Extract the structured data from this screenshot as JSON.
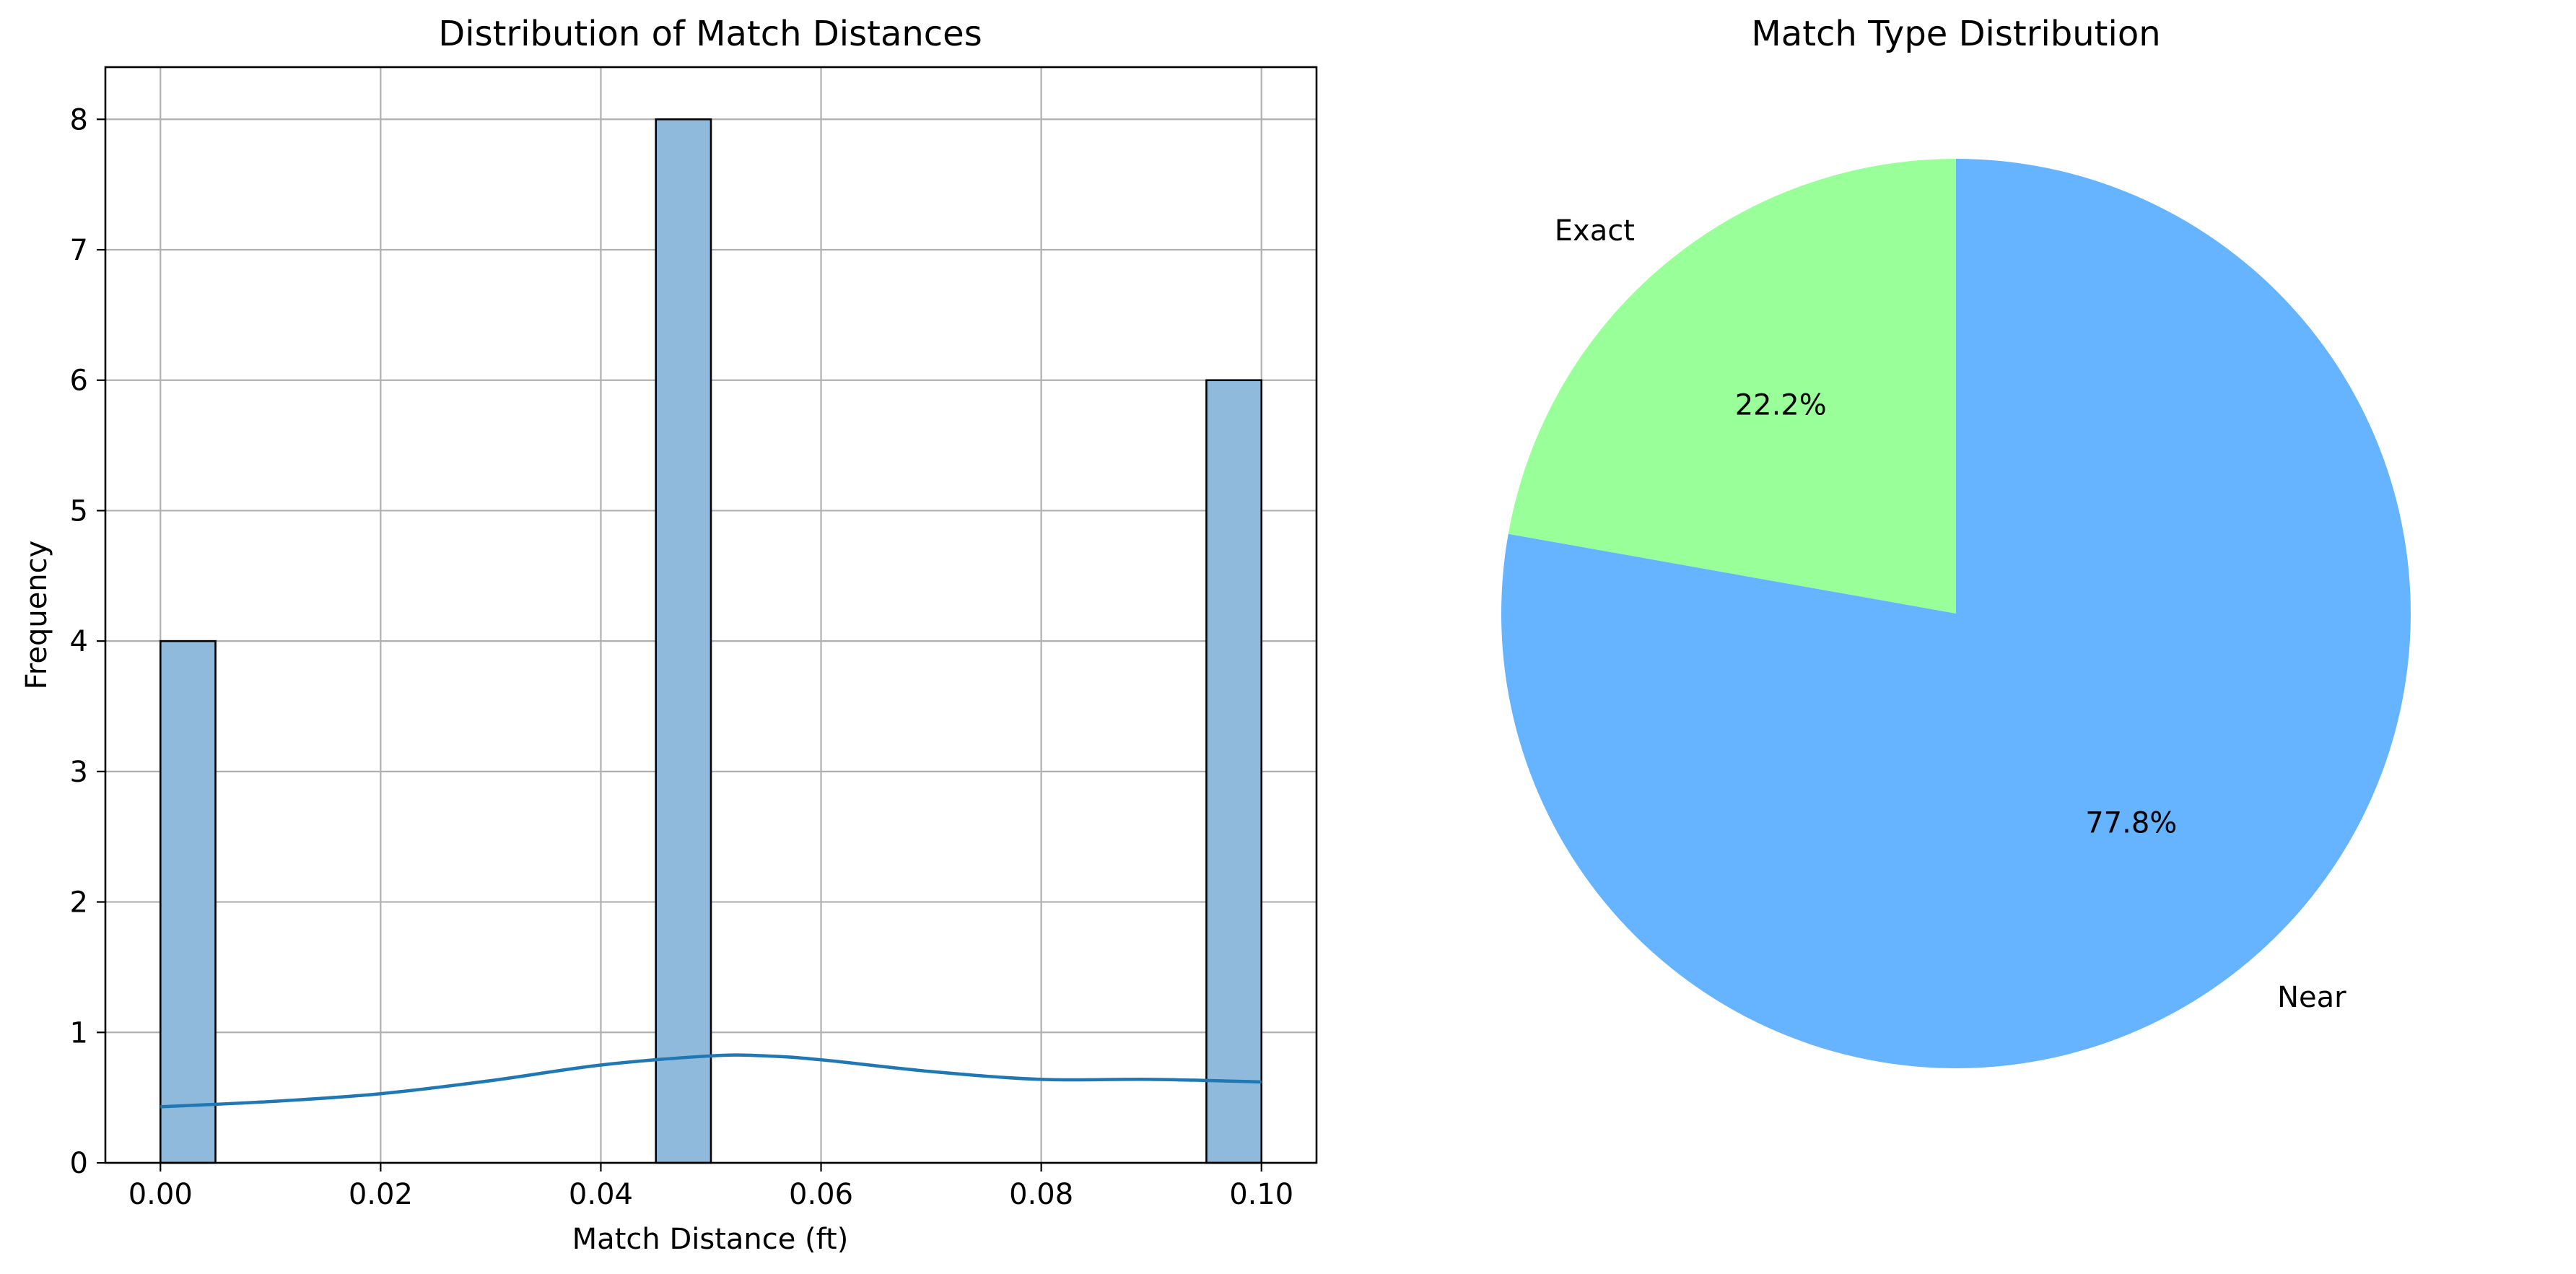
{
  "colors": {
    "bar_fill": "#8fbadb",
    "bar_edge": "#000000",
    "kde_line": "#1f77b4",
    "grid": "#b0b0b0",
    "pie_near": "#66b3ff",
    "pie_exact": "#99ff99"
  },
  "chart_data": [
    {
      "type": "bar",
      "title": "Distribution of Match Distances",
      "xlabel": "Match Distance (ft)",
      "ylabel": "Frequency",
      "xlim": [
        -0.005,
        0.105
      ],
      "ylim": [
        0,
        8.4
      ],
      "xticks": [
        0.0,
        0.02,
        0.04,
        0.06,
        0.08,
        0.1
      ],
      "xtick_labels": [
        "0.00",
        "0.02",
        "0.04",
        "0.06",
        "0.08",
        "0.10"
      ],
      "yticks": [
        0,
        1,
        2,
        3,
        4,
        5,
        6,
        7,
        8
      ],
      "ytick_labels": [
        "0",
        "1",
        "2",
        "3",
        "4",
        "5",
        "6",
        "7",
        "8"
      ],
      "grid": true,
      "bins": [
        {
          "start": 0.0,
          "end": 0.005,
          "count": 4
        },
        {
          "start": 0.045,
          "end": 0.05,
          "count": 8
        },
        {
          "start": 0.095,
          "end": 0.1,
          "count": 6
        }
      ],
      "kde": {
        "x": [
          0.0,
          0.01,
          0.02,
          0.03,
          0.04,
          0.05,
          0.055,
          0.06,
          0.07,
          0.08,
          0.09,
          0.1
        ],
        "y": [
          0.43,
          0.47,
          0.53,
          0.63,
          0.75,
          0.82,
          0.82,
          0.79,
          0.7,
          0.64,
          0.64,
          0.62
        ]
      }
    },
    {
      "type": "pie",
      "title": "Match Type Distribution",
      "startangle": 90,
      "slices": [
        {
          "label": "Exact",
          "value": 22.2,
          "pct_label": "22.2%",
          "color": "#99ff99"
        },
        {
          "label": "Near",
          "value": 77.8,
          "pct_label": "77.8%",
          "color": "#66b3ff"
        }
      ]
    }
  ]
}
